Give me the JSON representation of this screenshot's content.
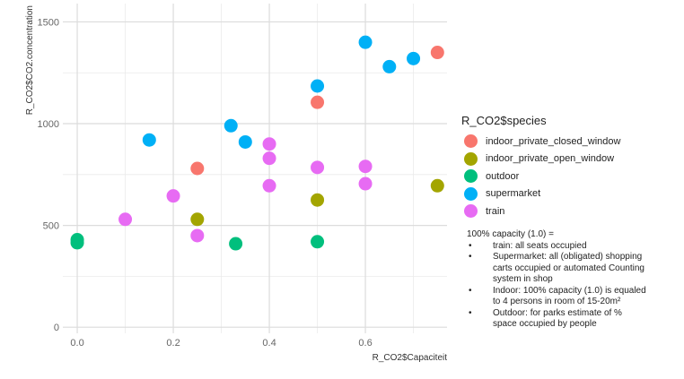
{
  "chart_data": {
    "type": "scatter",
    "title": "",
    "xlabel": "R_CO2$Capaciteit",
    "ylabel": "R_CO2$CO2.concentration",
    "xlim": [
      -0.03,
      0.77
    ],
    "ylim": [
      -30,
      1590
    ],
    "x_ticks": [
      0.0,
      0.2,
      0.4,
      0.6
    ],
    "x_tick_labels": [
      "0.0",
      "0.2",
      "0.4",
      "0.6"
    ],
    "y_ticks": [
      0,
      500,
      1000,
      1500
    ],
    "y_tick_labels": [
      "0",
      "500",
      "1000",
      "1500"
    ],
    "grid": true,
    "legend_position": "right",
    "legend_title": "R_CO2$species",
    "series": [
      {
        "name": "indoor_private_closed_window",
        "color": "#F8766D",
        "points": [
          [
            0.25,
            780
          ],
          [
            0.5,
            1105
          ],
          [
            0.75,
            1350
          ]
        ]
      },
      {
        "name": "indoor_private_open_window",
        "color": "#A3A500",
        "points": [
          [
            0.25,
            530
          ],
          [
            0.5,
            625
          ],
          [
            0.75,
            695
          ]
        ]
      },
      {
        "name": "outdoor",
        "color": "#00BF7D",
        "points": [
          [
            0.0,
            430
          ],
          [
            0.0,
            415
          ],
          [
            0.33,
            410
          ],
          [
            0.5,
            420
          ]
        ]
      },
      {
        "name": "supermarket",
        "color": "#00B0F6",
        "points": [
          [
            0.15,
            920
          ],
          [
            0.32,
            990
          ],
          [
            0.35,
            910
          ],
          [
            0.5,
            1185
          ],
          [
            0.6,
            1400
          ],
          [
            0.65,
            1280
          ],
          [
            0.7,
            1320
          ]
        ]
      },
      {
        "name": "train",
        "color": "#E76BF3",
        "points": [
          [
            0.1,
            530
          ],
          [
            0.2,
            645
          ],
          [
            0.25,
            450
          ],
          [
            0.4,
            900
          ],
          [
            0.4,
            830
          ],
          [
            0.4,
            695
          ],
          [
            0.5,
            785
          ],
          [
            0.6,
            790
          ],
          [
            0.6,
            705
          ]
        ]
      }
    ]
  },
  "note": {
    "heading": "100% capacity (1.0) =",
    "items": [
      "train: all seats occupied",
      "Supermarket: all (obligated) shopping carts occupied or automated Counting system in shop",
      "Indoor: 100% capacity (1.0) is equaled to 4 persons in room of 15-20m²",
      "Outdoor: for parks estimate of % space occupied by people"
    ]
  }
}
